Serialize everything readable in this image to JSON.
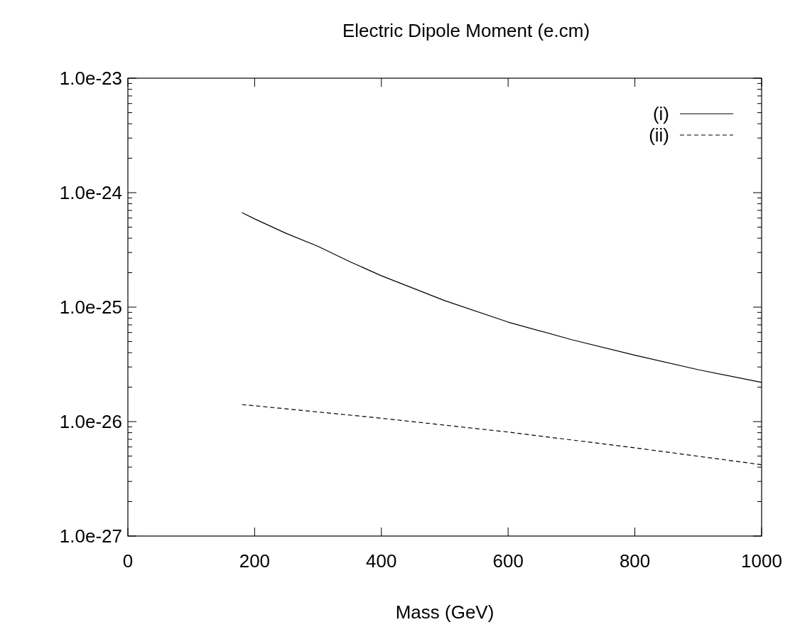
{
  "chart_data": {
    "type": "line",
    "title": "Electric Dipole Moment (e.cm)",
    "xlabel": "Mass (GeV)",
    "xlim": [
      0,
      1000
    ],
    "xticks": [
      0,
      200,
      400,
      600,
      800,
      1000
    ],
    "ylim": [
      1e-27,
      1e-23
    ],
    "log": "y",
    "yticks": [
      {
        "value": 1e-27,
        "label": "1.0e-27"
      },
      {
        "value": 2e-27,
        "label": null
      },
      {
        "value": 3e-27,
        "label": null
      },
      {
        "value": 4e-27,
        "label": null
      },
      {
        "value": 5e-27,
        "label": null
      },
      {
        "value": 6e-27,
        "label": null
      },
      {
        "value": 7e-27,
        "label": null
      },
      {
        "value": 8e-27,
        "label": null
      },
      {
        "value": 9e-27,
        "label": null
      },
      {
        "value": 1e-26,
        "label": "1.0e-26"
      },
      {
        "value": 2e-26,
        "label": null
      },
      {
        "value": 3e-26,
        "label": null
      },
      {
        "value": 4e-26,
        "label": null
      },
      {
        "value": 5e-26,
        "label": null
      },
      {
        "value": 6e-26,
        "label": null
      },
      {
        "value": 7e-26,
        "label": null
      },
      {
        "value": 8e-26,
        "label": null
      },
      {
        "value": 9e-26,
        "label": null
      },
      {
        "value": 1e-25,
        "label": "1.0e-25"
      },
      {
        "value": 2e-25,
        "label": null
      },
      {
        "value": 3e-25,
        "label": null
      },
      {
        "value": 4e-25,
        "label": null
      },
      {
        "value": 5e-25,
        "label": null
      },
      {
        "value": 6e-25,
        "label": null
      },
      {
        "value": 7e-25,
        "label": null
      },
      {
        "value": 8e-25,
        "label": null
      },
      {
        "value": 9e-25,
        "label": null
      },
      {
        "value": 1e-24,
        "label": "1.0e-24"
      },
      {
        "value": 2e-24,
        "label": null
      },
      {
        "value": 3e-24,
        "label": null
      },
      {
        "value": 4e-24,
        "label": null
      },
      {
        "value": 5e-24,
        "label": null
      },
      {
        "value": 6e-24,
        "label": null
      },
      {
        "value": 7e-24,
        "label": null
      },
      {
        "value": 8e-24,
        "label": null
      },
      {
        "value": 9e-24,
        "label": null
      },
      {
        "value": 1e-23,
        "label": "1.0e-23"
      }
    ],
    "grid": false,
    "legend": "top right",
    "series": [
      {
        "name": "(i)",
        "color": "#000000",
        "line_style": "solid",
        "x": [
          180,
          200,
          250,
          300,
          350,
          400,
          500,
          600,
          700,
          800,
          900,
          1000
        ],
        "values": [
          6.7e-25,
          5.9e-25,
          4.4e-25,
          3.4e-25,
          2.5e-25,
          1.88e-25,
          1.14e-25,
          7.4e-26,
          5.2e-26,
          3.8e-26,
          2.84e-26,
          2.2e-26
        ]
      },
      {
        "name": "(ii)",
        "color": "#000000",
        "line_style": "dashed",
        "x": [
          180,
          400,
          600,
          800,
          1000
        ],
        "values": [
          1.41e-26,
          1.07e-26,
          8.1e-27,
          5.9e-27,
          4.2e-27
        ]
      }
    ]
  }
}
